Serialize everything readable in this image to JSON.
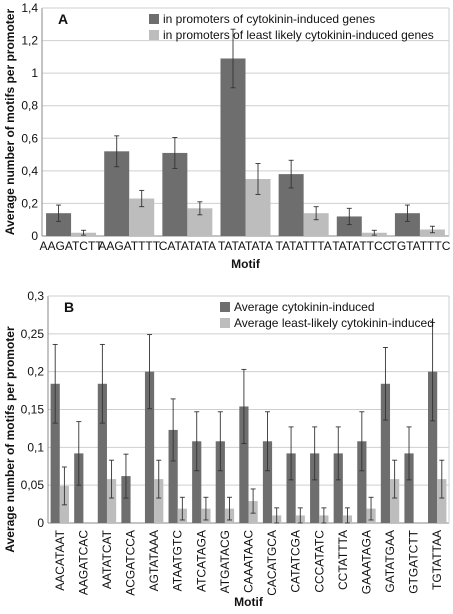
{
  "chart_data": [
    {
      "type": "bar",
      "panel_label": "A",
      "title": "",
      "xlabel": "Motif",
      "ylabel": "Average number of motifs per promoter",
      "ylim": [
        0,
        1.4
      ],
      "yticks": [
        "0",
        "0,2",
        "0,4",
        "0,6",
        "0,8",
        "1",
        "1,2",
        "1,4"
      ],
      "grid": true,
      "legend_position": "top-right",
      "categories": [
        "AAGATCTT",
        "AAGATTTT",
        "CATATATA",
        "TATATATA",
        "TATATTTA",
        "TATATTCC",
        "TGTATTTC"
      ],
      "series": [
        {
          "name": "in promoters of cytokinin-induced genes",
          "color": "#6e6e6e",
          "values": [
            0.14,
            0.52,
            0.51,
            1.09,
            0.38,
            0.12,
            0.14
          ],
          "errors": [
            0.05,
            0.095,
            0.095,
            0.18,
            0.085,
            0.05,
            0.05
          ]
        },
        {
          "name": "in promoters of least likely cytokinin-induced genes",
          "color": "#bdbdbd",
          "values": [
            0.02,
            0.23,
            0.17,
            0.35,
            0.14,
            0.02,
            0.04
          ],
          "errors": [
            0.015,
            0.05,
            0.04,
            0.095,
            0.04,
            0.015,
            0.02
          ]
        }
      ]
    },
    {
      "type": "bar",
      "panel_label": "B",
      "title": "",
      "xlabel": "Motif",
      "ylabel": "Average number of motifs per promoter",
      "ylim": [
        0,
        0.3
      ],
      "yticks": [
        "0",
        "0,05",
        "0,1",
        "0,15",
        "0,2",
        "0,25",
        "0,3"
      ],
      "grid": true,
      "legend_position": "top-right",
      "categories": [
        "AACATAAT",
        "AAGATCAC",
        "AATATCAT",
        "ACGATCCA",
        "AGTATAAA",
        "ATAATGTC",
        "ATCATAGA",
        "ATGATACG",
        "CAAATAAC",
        "CACATGCA",
        "CATATCGA",
        "CCCATATC",
        "CCTATTTA",
        "GAAATAGA",
        "GATATGAA",
        "GTGATCTT",
        "TGTATTAA"
      ],
      "series": [
        {
          "name": "Average cytokinin-induced",
          "color": "#6e6e6e",
          "values": [
            0.184,
            0.092,
            0.184,
            0.062,
            0.2,
            0.123,
            0.108,
            0.108,
            0.154,
            0.108,
            0.092,
            0.092,
            0.092,
            0.108,
            0.184,
            0.092,
            0.2
          ],
          "errors": [
            0.052,
            0.042,
            0.052,
            0.029,
            0.049,
            0.041,
            0.039,
            0.039,
            0.049,
            0.039,
            0.035,
            0.035,
            0.035,
            0.039,
            0.048,
            0.035,
            0.065
          ]
        },
        {
          "name": "Average least-likely cytokinin-induced",
          "color": "#bdbdbd",
          "values": [
            0.049,
            0,
            0.058,
            0,
            0.058,
            0.019,
            0.019,
            0.019,
            0.029,
            0.01,
            0.01,
            0.01,
            0.01,
            0.019,
            0.058,
            0,
            0.058
          ],
          "errors": [
            0.025,
            0,
            0.025,
            0,
            0.025,
            0.015,
            0.015,
            0.015,
            0.016,
            0.01,
            0.01,
            0.01,
            0.01,
            0.015,
            0.025,
            0,
            0.025
          ]
        }
      ]
    }
  ]
}
